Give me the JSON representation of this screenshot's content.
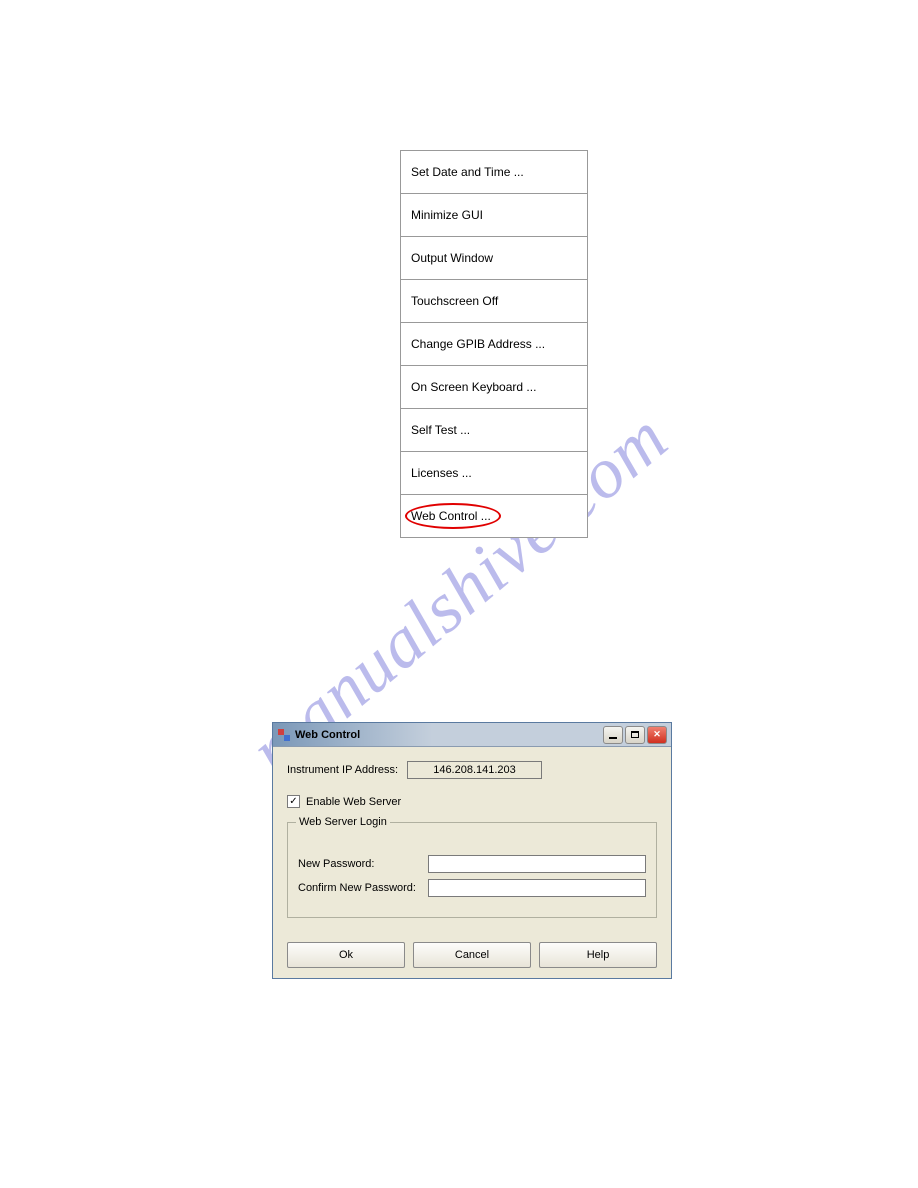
{
  "watermark_text": "manualshive.com",
  "menu": {
    "items": [
      "Set Date and Time ...",
      "Minimize GUI",
      "Output Window",
      "Touchscreen Off",
      "Change GPIB Address ...",
      "On Screen Keyboard ...",
      "Self Test ...",
      "Licenses ...",
      "Web Control ..."
    ],
    "highlighted_index": 8
  },
  "dialog": {
    "title": "Web Control",
    "ip_label": "Instrument IP Address:",
    "ip_value": "146.208.141.203",
    "enable_checkbox_label": "Enable Web Server",
    "enable_checkbox_checked": true,
    "fieldset_legend": "Web Server Login",
    "new_password_label": "New Password:",
    "confirm_password_label": "Confirm New Password:",
    "buttons": {
      "ok": "Ok",
      "cancel": "Cancel",
      "help": "Help"
    }
  }
}
